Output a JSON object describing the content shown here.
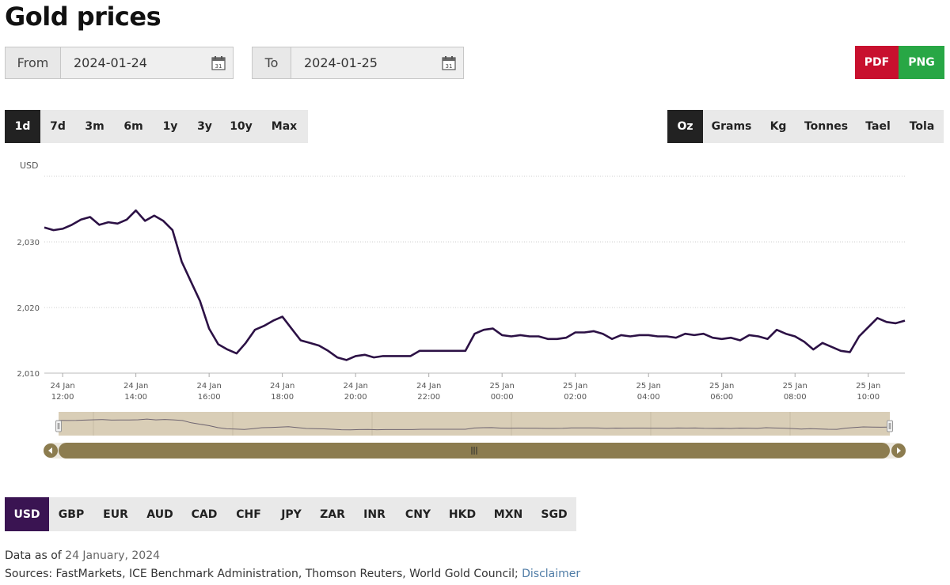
{
  "title": "Gold prices",
  "from": {
    "label": "From",
    "value": "2024-01-24"
  },
  "to": {
    "label": "To",
    "value": "2024-01-25"
  },
  "calendar_icon": {
    "name": "calendar-icon",
    "day": "31"
  },
  "export": {
    "pdf_label": "PDF",
    "png_label": "PNG",
    "pdf_color": "#c8102e",
    "png_color": "#28a745"
  },
  "ranges": [
    "1d",
    "7d",
    "3m",
    "6m",
    "1y",
    "3y",
    "10y",
    "Max"
  ],
  "active_range": "1d",
  "units": [
    "Oz",
    "Grams",
    "Kg",
    "Tonnes",
    "Tael",
    "Tola"
  ],
  "active_unit": "Oz",
  "currencies": [
    "USD",
    "GBP",
    "EUR",
    "AUD",
    "CAD",
    "CHF",
    "JPY",
    "ZAR",
    "INR",
    "CNY",
    "HKD",
    "MXN",
    "SGD"
  ],
  "active_currency": "USD",
  "chart_data": {
    "type": "line",
    "ylabel": "USD",
    "ylim": [
      2010,
      2040
    ],
    "yticks": [
      2010,
      2020,
      2030
    ],
    "ytick_labels": [
      "2,010",
      "2,020",
      "2,030"
    ],
    "xlim": [
      "2024-01-24T11:30",
      "2024-01-25T11:00"
    ],
    "x_ticks": [
      {
        "t": "2024-01-24T12:00",
        "date": "24 Jan",
        "time": "12:00"
      },
      {
        "t": "2024-01-24T14:00",
        "date": "24 Jan",
        "time": "14:00"
      },
      {
        "t": "2024-01-24T16:00",
        "date": "24 Jan",
        "time": "16:00"
      },
      {
        "t": "2024-01-24T18:00",
        "date": "24 Jan",
        "time": "18:00"
      },
      {
        "t": "2024-01-24T20:00",
        "date": "24 Jan",
        "time": "20:00"
      },
      {
        "t": "2024-01-24T22:00",
        "date": "24 Jan",
        "time": "22:00"
      },
      {
        "t": "2024-01-25T00:00",
        "date": "25 Jan",
        "time": "00:00"
      },
      {
        "t": "2024-01-25T02:00",
        "date": "25 Jan",
        "time": "02:00"
      },
      {
        "t": "2024-01-25T04:00",
        "date": "25 Jan",
        "time": "04:00"
      },
      {
        "t": "2024-01-25T06:00",
        "date": "25 Jan",
        "time": "06:00"
      },
      {
        "t": "2024-01-25T08:00",
        "date": "25 Jan",
        "time": "08:00"
      },
      {
        "t": "2024-01-25T10:00",
        "date": "25 Jan",
        "time": "10:00"
      }
    ],
    "grid": true,
    "line_color": "#2c1145",
    "series": [
      {
        "x": [
          "2024-01-24T11:30",
          "2024-01-24T11:45",
          "2024-01-24T12:00",
          "2024-01-24T12:15",
          "2024-01-24T12:30",
          "2024-01-24T12:45",
          "2024-01-24T13:00",
          "2024-01-24T13:15",
          "2024-01-24T13:30",
          "2024-01-24T13:45",
          "2024-01-24T14:00",
          "2024-01-24T14:15",
          "2024-01-24T14:30",
          "2024-01-24T14:45",
          "2024-01-24T15:00",
          "2024-01-24T15:15",
          "2024-01-24T15:30",
          "2024-01-24T15:45",
          "2024-01-24T16:00",
          "2024-01-24T16:15",
          "2024-01-24T16:30",
          "2024-01-24T16:45",
          "2024-01-24T17:00",
          "2024-01-24T17:15",
          "2024-01-24T17:30",
          "2024-01-24T17:45",
          "2024-01-24T18:00",
          "2024-01-24T18:15",
          "2024-01-24T18:30",
          "2024-01-24T18:45",
          "2024-01-24T19:00",
          "2024-01-24T19:15",
          "2024-01-24T19:30",
          "2024-01-24T19:45",
          "2024-01-24T20:00",
          "2024-01-24T20:15",
          "2024-01-24T20:30",
          "2024-01-24T20:45",
          "2024-01-24T21:00",
          "2024-01-24T21:15",
          "2024-01-24T21:30",
          "2024-01-24T21:45",
          "2024-01-24T22:00",
          "2024-01-24T22:15",
          "2024-01-24T22:30",
          "2024-01-24T22:45",
          "2024-01-24T23:00",
          "2024-01-24T23:15",
          "2024-01-24T23:30",
          "2024-01-24T23:45",
          "2024-01-25T00:00",
          "2024-01-25T00:15",
          "2024-01-25T00:30",
          "2024-01-25T00:45",
          "2024-01-25T01:00",
          "2024-01-25T01:15",
          "2024-01-25T01:30",
          "2024-01-25T01:45",
          "2024-01-25T02:00",
          "2024-01-25T02:15",
          "2024-01-25T02:30",
          "2024-01-25T02:45",
          "2024-01-25T03:00",
          "2024-01-25T03:15",
          "2024-01-25T03:30",
          "2024-01-25T03:45",
          "2024-01-25T04:00",
          "2024-01-25T04:15",
          "2024-01-25T04:30",
          "2024-01-25T04:45",
          "2024-01-25T05:00",
          "2024-01-25T05:15",
          "2024-01-25T05:30",
          "2024-01-25T05:45",
          "2024-01-25T06:00",
          "2024-01-25T06:15",
          "2024-01-25T06:30",
          "2024-01-25T06:45",
          "2024-01-25T07:00",
          "2024-01-25T07:15",
          "2024-01-25T07:30",
          "2024-01-25T07:45",
          "2024-01-25T08:00",
          "2024-01-25T08:15",
          "2024-01-25T08:30",
          "2024-01-25T08:45",
          "2024-01-25T09:00",
          "2024-01-25T09:15",
          "2024-01-25T09:30",
          "2024-01-25T09:45",
          "2024-01-25T10:00",
          "2024-01-25T10:15",
          "2024-01-25T10:30",
          "2024-01-25T10:45",
          "2024-01-25T11:00"
        ],
        "y": [
          2032.2,
          2031.8,
          2032.0,
          2032.6,
          2033.4,
          2033.8,
          2032.6,
          2033.0,
          2032.8,
          2033.4,
          2034.8,
          2033.2,
          2034.0,
          2033.2,
          2031.8,
          2027.0,
          2024.0,
          2021.0,
          2016.8,
          2014.4,
          2013.6,
          2013.0,
          2014.6,
          2016.6,
          2017.2,
          2018.0,
          2018.6,
          2016.8,
          2015.0,
          2014.6,
          2014.2,
          2013.4,
          2012.4,
          2012.0,
          2012.6,
          2012.8,
          2012.4,
          2012.6,
          2012.6,
          2012.6,
          2012.6,
          2013.4,
          2013.4,
          2013.4,
          2013.4,
          2013.4,
          2013.4,
          2016.0,
          2016.6,
          2016.8,
          2015.8,
          2015.6,
          2015.8,
          2015.6,
          2015.6,
          2015.2,
          2015.2,
          2015.4,
          2016.2,
          2016.2,
          2016.4,
          2016.0,
          2015.2,
          2015.8,
          2015.6,
          2015.8,
          2015.8,
          2015.6,
          2015.6,
          2015.4,
          2016.0,
          2015.8,
          2016.0,
          2015.4,
          2015.2,
          2015.4,
          2015.0,
          2015.8,
          2015.6,
          2015.2,
          2016.6,
          2016.0,
          2015.6,
          2014.8,
          2013.6,
          2014.6,
          2014.0,
          2013.4,
          2013.2,
          2015.6,
          2017.0,
          2018.4,
          2017.8,
          2017.6,
          2018.0
        ]
      }
    ]
  },
  "data_as_of": {
    "label": "Data as of",
    "date": "24 January, 2024"
  },
  "sources": {
    "text": "Sources: FastMarkets, ICE Benchmark Administration, Thomson Reuters, World Gold Council;",
    "link": "Disclaimer"
  }
}
